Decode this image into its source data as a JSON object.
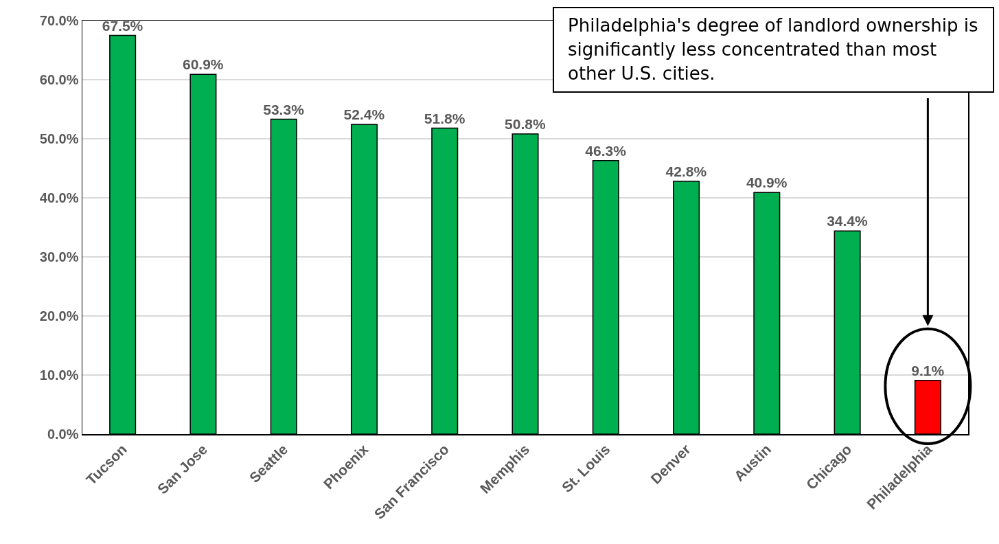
{
  "chart_data": {
    "type": "bar",
    "categories": [
      "Tucson",
      "San Jose",
      "Seattle",
      "Phoenix",
      "San Francisco",
      "Memphis",
      "St. Louis",
      "Denver",
      "Austin",
      "Chicago",
      "Philadelphia"
    ],
    "values": [
      67.5,
      60.9,
      53.3,
      52.4,
      51.8,
      50.8,
      46.3,
      42.8,
      40.9,
      34.4,
      9.1
    ],
    "colors": [
      "#00b050",
      "#00b050",
      "#00b050",
      "#00b050",
      "#00b050",
      "#00b050",
      "#00b050",
      "#00b050",
      "#00b050",
      "#00b050",
      "#ff0000"
    ],
    "value_labels": [
      "67.5%",
      "60.9%",
      "53.3%",
      "52.4%",
      "51.8%",
      "50.8%",
      "46.3%",
      "42.8%",
      "40.9%",
      "34.4%",
      "9.1%"
    ],
    "ylim": [
      0,
      70
    ],
    "yticks": [
      {
        "value": 0,
        "label": "0.0%"
      },
      {
        "value": 10,
        "label": "10.0%"
      },
      {
        "value": 20,
        "label": "20.0%"
      },
      {
        "value": 30,
        "label": "30.0%"
      },
      {
        "value": 40,
        "label": "40.0%"
      },
      {
        "value": 50,
        "label": "50.0%"
      },
      {
        "value": 60,
        "label": "60.0%"
      },
      {
        "value": 70,
        "label": "70.0%"
      }
    ],
    "grid": "y",
    "annotations": [
      "Philadelphia's degree of landlord ownership is significantly less concentrated than most other U.S. cities."
    ]
  }
}
